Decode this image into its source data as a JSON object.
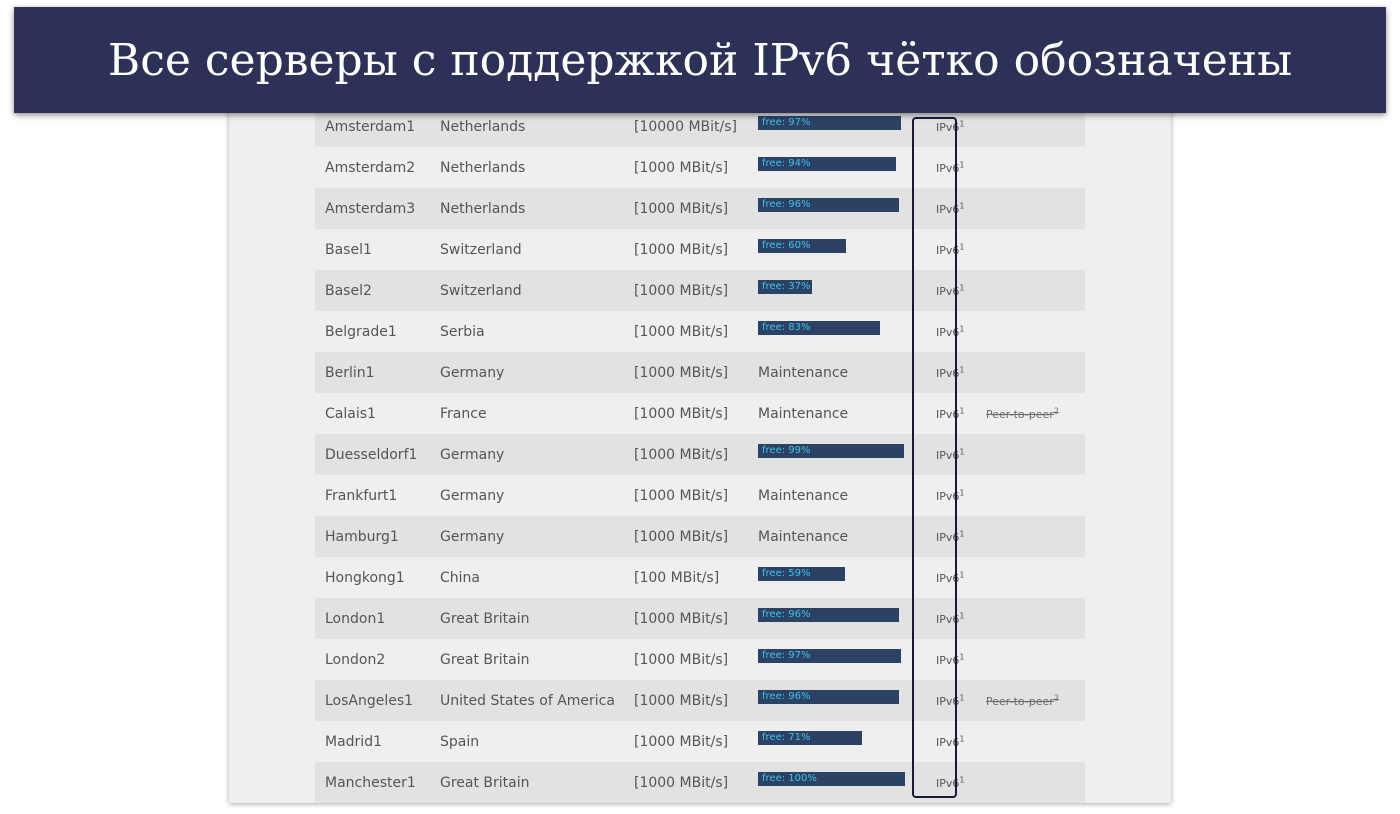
{
  "banner": {
    "title": "Все серверы с поддержкой IPv6 чётко обозначены"
  },
  "servers": [
    {
      "name": "Amsterdam1",
      "country": "Netherlands",
      "speed": "[10000 MBit/s]",
      "status": "free: 97%",
      "free": 0.97,
      "ipv6": "IPv6",
      "ipv6_note": "1",
      "p2p": "",
      "p2p_note": ""
    },
    {
      "name": "Amsterdam2",
      "country": "Netherlands",
      "speed": "[1000 MBit/s]",
      "status": "free: 94%",
      "free": 0.94,
      "ipv6": "IPv6",
      "ipv6_note": "1",
      "p2p": "",
      "p2p_note": ""
    },
    {
      "name": "Amsterdam3",
      "country": "Netherlands",
      "speed": "[1000 MBit/s]",
      "status": "free: 96%",
      "free": 0.96,
      "ipv6": "IPv6",
      "ipv6_note": "1",
      "p2p": "",
      "p2p_note": ""
    },
    {
      "name": "Basel1",
      "country": "Switzerland",
      "speed": "[1000 MBit/s]",
      "status": "free: 60%",
      "free": 0.6,
      "ipv6": "IPv6",
      "ipv6_note": "1",
      "p2p": "",
      "p2p_note": ""
    },
    {
      "name": "Basel2",
      "country": "Switzerland",
      "speed": "[1000 MBit/s]",
      "status": "free: 37%",
      "free": 0.37,
      "ipv6": "IPv6",
      "ipv6_note": "1",
      "p2p": "",
      "p2p_note": ""
    },
    {
      "name": "Belgrade1",
      "country": "Serbia",
      "speed": "[1000 MBit/s]",
      "status": "free: 83%",
      "free": 0.83,
      "ipv6": "IPv6",
      "ipv6_note": "1",
      "p2p": "",
      "p2p_note": ""
    },
    {
      "name": "Berlin1",
      "country": "Germany",
      "speed": "[1000 MBit/s]",
      "status": "Maintenance",
      "free": null,
      "ipv6": "IPv6",
      "ipv6_note": "1",
      "p2p": "",
      "p2p_note": ""
    },
    {
      "name": "Calais1",
      "country": "France",
      "speed": "[1000 MBit/s]",
      "status": "Maintenance",
      "free": null,
      "ipv6": "IPv6",
      "ipv6_note": "1",
      "p2p": "Peer-to-peer",
      "p2p_note": "2"
    },
    {
      "name": "Duesseldorf1",
      "country": "Germany",
      "speed": "[1000 MBit/s]",
      "status": "free: 99%",
      "free": 0.99,
      "ipv6": "IPv6",
      "ipv6_note": "1",
      "p2p": "",
      "p2p_note": ""
    },
    {
      "name": "Frankfurt1",
      "country": "Germany",
      "speed": "[1000 MBit/s]",
      "status": "Maintenance",
      "free": null,
      "ipv6": "IPv6",
      "ipv6_note": "1",
      "p2p": "",
      "p2p_note": ""
    },
    {
      "name": "Hamburg1",
      "country": "Germany",
      "speed": "[1000 MBit/s]",
      "status": "Maintenance",
      "free": null,
      "ipv6": "IPv6",
      "ipv6_note": "1",
      "p2p": "",
      "p2p_note": ""
    },
    {
      "name": "Hongkong1",
      "country": "China",
      "speed": "[100 MBit/s]",
      "status": "free: 59%",
      "free": 0.59,
      "ipv6": "IPv6",
      "ipv6_note": "1",
      "p2p": "",
      "p2p_note": ""
    },
    {
      "name": "London1",
      "country": "Great Britain",
      "speed": "[1000 MBit/s]",
      "status": "free: 96%",
      "free": 0.96,
      "ipv6": "IPv6",
      "ipv6_note": "1",
      "p2p": "",
      "p2p_note": ""
    },
    {
      "name": "London2",
      "country": "Great Britain",
      "speed": "[1000 MBit/s]",
      "status": "free: 97%",
      "free": 0.97,
      "ipv6": "IPv6",
      "ipv6_note": "1",
      "p2p": "",
      "p2p_note": ""
    },
    {
      "name": "LosAngeles1",
      "country": "United States of America",
      "speed": "[1000 MBit/s]",
      "status": "free: 96%",
      "free": 0.96,
      "ipv6": "IPv6",
      "ipv6_note": "1",
      "p2p": "Peer-to-peer",
      "p2p_note": "2"
    },
    {
      "name": "Madrid1",
      "country": "Spain",
      "speed": "[1000 MBit/s]",
      "status": "free: 71%",
      "free": 0.71,
      "ipv6": "IPv6",
      "ipv6_note": "1",
      "p2p": "",
      "p2p_note": ""
    },
    {
      "name": "Manchester1",
      "country": "Great Britain",
      "speed": "[1000 MBit/s]",
      "status": "free: 100%",
      "free": 1.0,
      "ipv6": "IPv6",
      "ipv6_note": "1",
      "p2p": "",
      "p2p_note": ""
    }
  ],
  "colors": {
    "banner_bg": "#2e3157",
    "bar_fill": "#2b4264",
    "bar_label": "#3ec2ea",
    "highlight_border": "#16193a",
    "row_shaded": "#e2e2e2",
    "row_plain": "#efefef"
  }
}
